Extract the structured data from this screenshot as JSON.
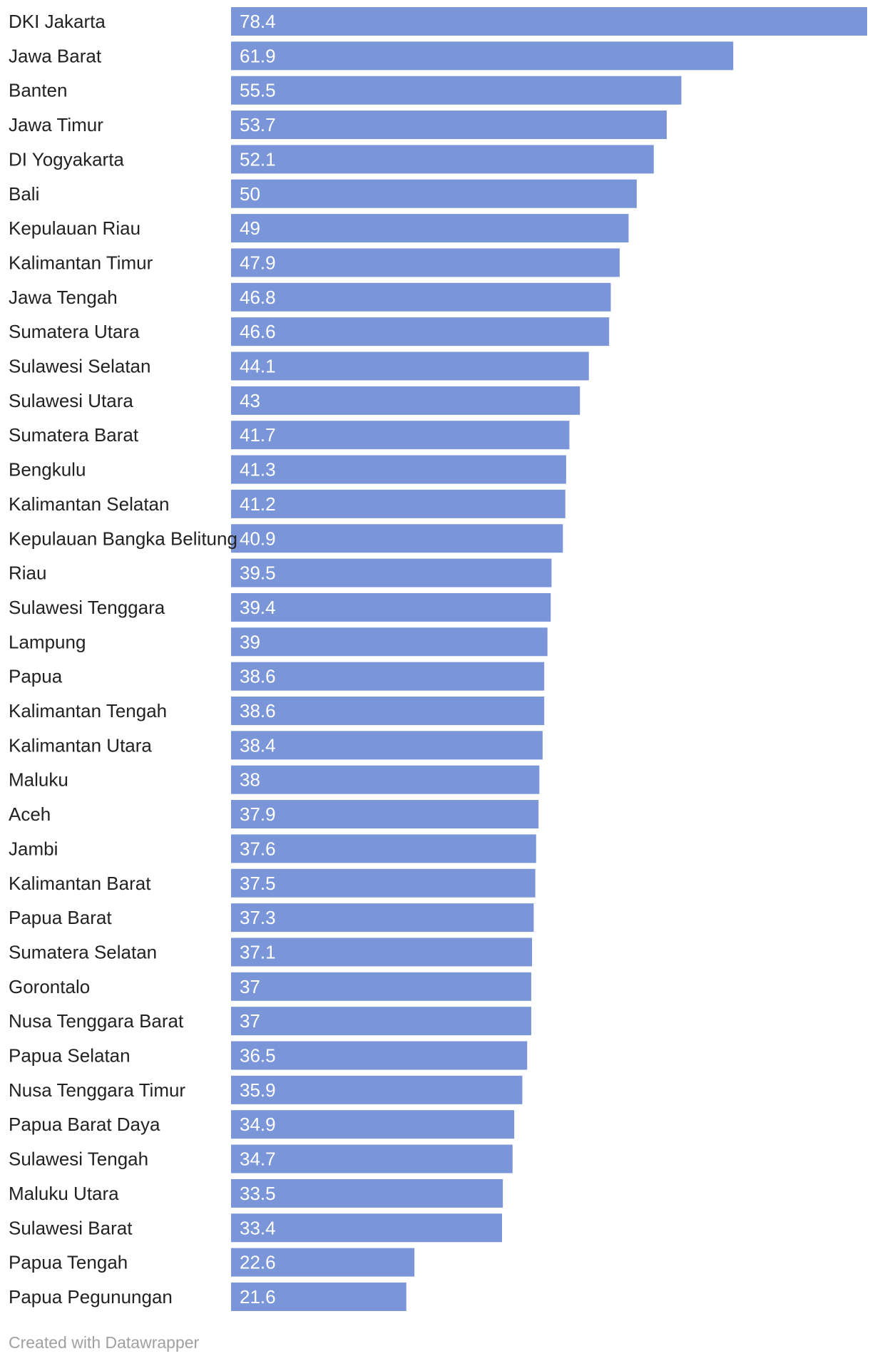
{
  "footer": {
    "credit": "Created with Datawrapper"
  },
  "colors": {
    "bar": "#7b96d8",
    "label_text": "#222222",
    "value_text": "#ffffff",
    "footer_text": "#a0a0a0"
  },
  "chart_data": {
    "type": "bar",
    "orientation": "horizontal",
    "title": "",
    "xlabel": "",
    "ylabel": "",
    "xlim": [
      0,
      78.4
    ],
    "grid": false,
    "legend": "none",
    "categories": [
      "DKI Jakarta",
      "Jawa Barat",
      "Banten",
      "Jawa Timur",
      "DI Yogyakarta",
      "Bali",
      "Kepulauan Riau",
      "Kalimantan Timur",
      "Jawa Tengah",
      "Sumatera Utara",
      "Sulawesi Selatan",
      "Sulawesi Utara",
      "Sumatera Barat",
      "Bengkulu",
      "Kalimantan Selatan",
      "Kepulauan Bangka Belitung",
      "Riau",
      "Sulawesi Tenggara",
      "Lampung",
      "Papua",
      "Kalimantan Tengah",
      "Kalimantan Utara",
      "Maluku",
      "Aceh",
      "Jambi",
      "Kalimantan Barat",
      "Papua Barat",
      "Sumatera Selatan",
      "Gorontalo",
      "Nusa Tenggara Barat",
      "Papua Selatan",
      "Nusa Tenggara Timur",
      "Papua Barat Daya",
      "Sulawesi Tengah",
      "Maluku Utara",
      "Sulawesi Barat",
      "Papua Tengah",
      "Papua Pegunungan"
    ],
    "values": [
      78.4,
      61.9,
      55.5,
      53.7,
      52.1,
      50,
      49,
      47.9,
      46.8,
      46.6,
      44.1,
      43,
      41.7,
      41.3,
      41.2,
      40.9,
      39.5,
      39.4,
      39,
      38.6,
      38.6,
      38.4,
      38,
      37.9,
      37.6,
      37.5,
      37.3,
      37.1,
      37,
      37,
      36.5,
      35.9,
      34.9,
      34.7,
      33.5,
      33.4,
      22.6,
      21.6
    ],
    "value_labels": [
      "78.4",
      "61.9",
      "55.5",
      "53.7",
      "52.1",
      "50",
      "49",
      "47.9",
      "46.8",
      "46.6",
      "44.1",
      "43",
      "41.7",
      "41.3",
      "41.2",
      "40.9",
      "39.5",
      "39.4",
      "39",
      "38.6",
      "38.6",
      "38.4",
      "38",
      "37.9",
      "37.6",
      "37.5",
      "37.3",
      "37.1",
      "37",
      "37",
      "36.5",
      "35.9",
      "34.9",
      "34.7",
      "33.5",
      "33.4",
      "22.6",
      "21.6"
    ]
  }
}
